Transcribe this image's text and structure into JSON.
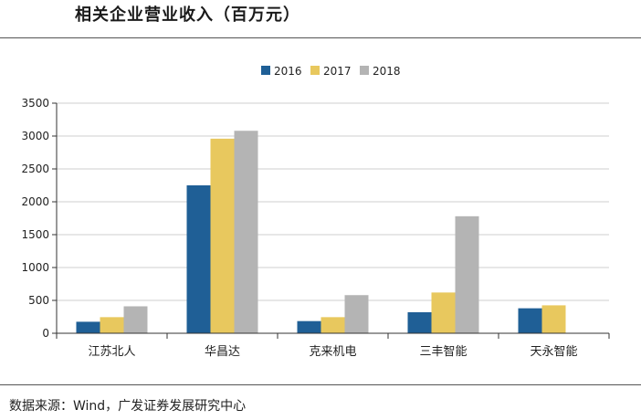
{
  "header": {
    "title": "相关企业营业收入（百万元）"
  },
  "footer": {
    "source": "数据来源：Wind，广发证券发展研究中心"
  },
  "chart_data": {
    "type": "bar",
    "title": "相关企业营业收入（百万元）",
    "xlabel": "",
    "ylabel": "",
    "ylim": [
      0,
      3500
    ],
    "yticks": [
      0,
      500,
      1000,
      1500,
      2000,
      2500,
      3000,
      3500
    ],
    "grid": true,
    "legend_position": "top-center",
    "categories": [
      "江苏北人",
      "华昌达",
      "克来机电",
      "三丰智能",
      "天永智能"
    ],
    "series": [
      {
        "name": "2016",
        "color": "#1f5f96",
        "values": [
          175,
          2250,
          185,
          320,
          380
        ]
      },
      {
        "name": "2017",
        "color": "#e8c85e",
        "values": [
          245,
          2960,
          245,
          620,
          425
        ]
      },
      {
        "name": "2018",
        "color": "#b4b4b4",
        "values": [
          410,
          3080,
          580,
          1780,
          null
        ]
      }
    ]
  }
}
